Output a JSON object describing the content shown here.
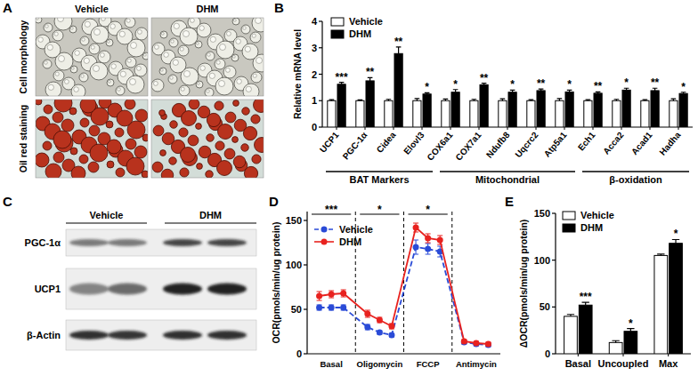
{
  "panels": {
    "A": {
      "label": "A",
      "columns": [
        "Vehicle",
        "DHM"
      ],
      "rows": [
        "Cell morphology",
        "Oil red staining"
      ]
    },
    "C": {
      "label": "C",
      "groups": [
        "Vehicle",
        "DHM"
      ],
      "bands": [
        "PGC-1α",
        "UCP1",
        "β-Actin"
      ]
    }
  },
  "chart_data": [
    {
      "label": "B",
      "type": "bar",
      "y_label": "Relative mRNA level",
      "categories": [
        "UCP1",
        "PGC-1α",
        "Cidea",
        "Elovl3",
        "COX6a1",
        "COX7a1",
        "Ndufb8",
        "Uqcrc2",
        "Atp5a1",
        "Ech1",
        "Acca2",
        "Acad1",
        "Hadha"
      ],
      "series": [
        {
          "name": "Vehicle",
          "color": "#ffffff",
          "values": [
            1,
            1,
            1,
            1,
            1,
            1,
            1,
            1,
            1,
            1,
            1,
            1,
            1
          ],
          "errors": [
            0.04,
            0.03,
            0.05,
            0.08,
            0.06,
            0.05,
            0.07,
            0.04,
            0.08,
            0.04,
            0.05,
            0.04,
            0.07
          ]
        },
        {
          "name": "DHM",
          "color": "#000000",
          "values": [
            1.62,
            1.75,
            2.78,
            1.25,
            1.32,
            1.6,
            1.32,
            1.38,
            1.33,
            1.28,
            1.4,
            1.38,
            1.27
          ],
          "errors": [
            0.07,
            0.12,
            0.25,
            0.05,
            0.1,
            0.06,
            0.08,
            0.06,
            0.07,
            0.05,
            0.07,
            0.09,
            0.05
          ]
        }
      ],
      "significance": [
        "***",
        "**",
        "**",
        "*",
        "*",
        "**",
        "*",
        "**",
        "*",
        "**",
        "*",
        "**",
        "*"
      ],
      "groups": [
        {
          "label": "BAT Markers",
          "start": 0,
          "end": 3
        },
        {
          "label": "Mitochondrial",
          "start": 4,
          "end": 8
        },
        {
          "label": "β-oxidation",
          "start": 9,
          "end": 12
        }
      ],
      "ylim": [
        0,
        4
      ],
      "yticks": [
        0,
        1,
        2,
        3,
        4
      ],
      "grid": false,
      "legend": "top-left"
    },
    {
      "label": "D",
      "type": "line",
      "y_label": "OCR(pmols/min/ug protein)",
      "x": [
        1,
        2,
        3,
        5,
        6,
        7,
        9,
        10,
        11,
        13,
        14,
        15
      ],
      "xlim": [
        0,
        16
      ],
      "ylim": [
        0,
        160
      ],
      "yticks": [
        0,
        50,
        100,
        150
      ],
      "tick_labels": "y",
      "grid": false,
      "legend": "top-left",
      "phases": [
        {
          "label": "Basal",
          "start": 0,
          "end": 4,
          "significance": "***"
        },
        {
          "label": "Oligomycin",
          "start": 4,
          "end": 8,
          "significance": "*"
        },
        {
          "label": "FCCP",
          "start": 8,
          "end": 12,
          "significance": "*"
        },
        {
          "label": "Antimycin",
          "start": 12,
          "end": 16
        }
      ],
      "series": [
        {
          "name": "Vehicle",
          "color": "#2a4bd7",
          "marker": "circle",
          "line_style": "dashed",
          "values": [
            52,
            52,
            52,
            30,
            24,
            21,
            120,
            118,
            115,
            13,
            11,
            10
          ],
          "errors": [
            3,
            3,
            3,
            3,
            2,
            2,
            8,
            6,
            6,
            2,
            2,
            2
          ]
        },
        {
          "name": "DHM",
          "color": "#e8221f",
          "marker": "circle",
          "line_style": "solid",
          "values": [
            65,
            67,
            68,
            45,
            38,
            31,
            142,
            130,
            128,
            14,
            12,
            11
          ],
          "errors": [
            5,
            4,
            4,
            4,
            3,
            3,
            5,
            5,
            5,
            2,
            2,
            2
          ]
        }
      ]
    },
    {
      "label": "E",
      "type": "bar",
      "y_label": "ΔOCR(pmols/min/ug protein)",
      "categories": [
        "Basal",
        "Uncoupled",
        "Max"
      ],
      "series": [
        {
          "name": "Vehicle",
          "color": "#ffffff",
          "values": [
            40,
            12,
            105
          ],
          "errors": [
            2,
            2,
            1.5
          ]
        },
        {
          "name": "DHM",
          "color": "#000000",
          "values": [
            52,
            24,
            118
          ],
          "errors": [
            3,
            3,
            4
          ]
        }
      ],
      "significance": [
        "***",
        "*",
        "*"
      ],
      "ylim": [
        0,
        150
      ],
      "yticks": [
        0,
        50,
        100,
        150
      ],
      "grid": false,
      "legend": "top-left"
    }
  ]
}
